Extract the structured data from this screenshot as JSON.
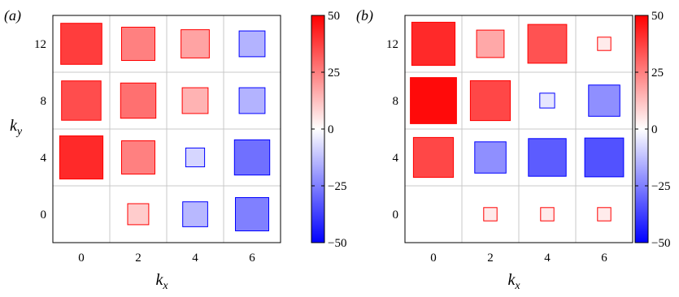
{
  "colorbar": {
    "ticks": [
      "50",
      "25",
      "0",
      "−25",
      "−50"
    ],
    "tick_values": [
      50,
      25,
      0,
      -25,
      -50
    ],
    "range": [
      -50,
      50
    ],
    "low_color": "#0000ff",
    "mid_color": "#ffffff",
    "high_color": "#ff0000"
  },
  "axes": {
    "x_letter": "k",
    "x_sub": "x",
    "y_letter": "k",
    "y_sub": "y"
  },
  "chart_data": [
    {
      "type": "heatmap",
      "panel_label": "(a)",
      "x": [
        0,
        2,
        4,
        6
      ],
      "y": [
        0,
        4,
        8,
        12
      ],
      "x_ticks": [
        "0",
        "2",
        "4",
        "6"
      ],
      "y_ticks": [
        "0",
        "4",
        "8",
        "12"
      ],
      "xlabel": "",
      "ylabel": "k_y",
      "grid": true,
      "cells": [
        {
          "x": 0,
          "y": 12,
          "value": 38
        },
        {
          "x": 2,
          "y": 12,
          "value": 25
        },
        {
          "x": 4,
          "y": 12,
          "value": 18
        },
        {
          "x": 6,
          "y": 12,
          "value": -15
        },
        {
          "x": 0,
          "y": 8,
          "value": 35
        },
        {
          "x": 2,
          "y": 8,
          "value": 28
        },
        {
          "x": 4,
          "y": 8,
          "value": 15
        },
        {
          "x": 6,
          "y": 8,
          "value": -15
        },
        {
          "x": 0,
          "y": 4,
          "value": 42
        },
        {
          "x": 2,
          "y": 4,
          "value": 25
        },
        {
          "x": 4,
          "y": 4,
          "value": -8
        },
        {
          "x": 6,
          "y": 4,
          "value": -28
        },
        {
          "x": 2,
          "y": 0,
          "value": 10
        },
        {
          "x": 4,
          "y": 0,
          "value": -14
        },
        {
          "x": 6,
          "y": 0,
          "value": -25
        }
      ]
    },
    {
      "type": "heatmap",
      "panel_label": "(b)",
      "x": [
        0,
        2,
        4,
        6
      ],
      "y": [
        0,
        4,
        8,
        12
      ],
      "x_ticks": [
        "0",
        "2",
        "4",
        "6"
      ],
      "y_ticks": [
        "0",
        "4",
        "8",
        "12"
      ],
      "xlabel": "k_x",
      "ylabel": "",
      "grid": true,
      "cells": [
        {
          "x": 0,
          "y": 12,
          "value": 42
        },
        {
          "x": 2,
          "y": 12,
          "value": 17
        },
        {
          "x": 4,
          "y": 12,
          "value": 34
        },
        {
          "x": 6,
          "y": 12,
          "value": 4
        },
        {
          "x": 0,
          "y": 8,
          "value": 48
        },
        {
          "x": 2,
          "y": 8,
          "value": 36
        },
        {
          "x": 4,
          "y": 8,
          "value": -5
        },
        {
          "x": 6,
          "y": 8,
          "value": -22
        },
        {
          "x": 0,
          "y": 4,
          "value": 36
        },
        {
          "x": 2,
          "y": 4,
          "value": -22
        },
        {
          "x": 4,
          "y": 4,
          "value": -32
        },
        {
          "x": 6,
          "y": 4,
          "value": -34
        },
        {
          "x": 2,
          "y": 0,
          "value": 4
        },
        {
          "x": 4,
          "y": 0,
          "value": 4
        },
        {
          "x": 6,
          "y": 0,
          "value": 4
        }
      ]
    }
  ]
}
